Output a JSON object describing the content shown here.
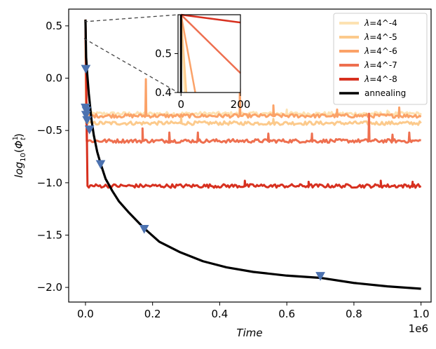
{
  "chart_data": {
    "type": "line",
    "xlabel": "Time",
    "ylabel": "log₁₀(Φ¹ₜ)",
    "ylabel_parts": {
      "base": "log",
      "sub": "10",
      "open": "(",
      "sym": "Φ",
      "sup": "1",
      "symsub": "t",
      "close": ")"
    },
    "xlim": [
      -50000,
      1030000
    ],
    "ylim": [
      -2.14,
      0.66
    ],
    "x_ticks": [
      0,
      200000,
      400000,
      600000,
      800000,
      1000000
    ],
    "x_tick_labels": [
      "0.0",
      "0.2",
      "0.4",
      "0.6",
      "0.8",
      "1.0"
    ],
    "x_offset_label": "1e6",
    "y_ticks": [
      0.5,
      0.0,
      -0.5,
      -1.0,
      -1.5,
      -2.0
    ],
    "y_tick_labels": [
      "0.5",
      "0.0",
      "−0.5",
      "−1.0",
      "−1.5",
      "−2.0"
    ],
    "legend_position": "top-right",
    "series": [
      {
        "name": "λ=4^-4",
        "lambda_label": "λ",
        "rest_label": "=4^-4",
        "color": "#fde2b2",
        "plateau": -0.34,
        "t_drop": 1200,
        "spikes": [
          [
            460000,
            0.06
          ],
          [
            600000,
            0.04
          ],
          [
            900000,
            0.03
          ]
        ]
      },
      {
        "name": "λ=4^-5",
        "lambda_label": "λ",
        "rest_label": "=4^-5",
        "color": "#fcca8c",
        "plateau": -0.43,
        "t_drop": 1800,
        "spikes": [
          [
            285000,
            0.06
          ],
          [
            560000,
            0.04
          ]
        ]
      },
      {
        "name": "λ=4^-6",
        "lambda_label": "λ",
        "rest_label": "=4^-6",
        "color": "#fba268",
        "plateau": -0.36,
        "t_drop": 2600,
        "spikes": [
          [
            180000,
            0.35
          ],
          [
            560000,
            0.1
          ],
          [
            750000,
            0.06
          ],
          [
            935000,
            0.08
          ],
          [
            460000,
            0.26
          ]
        ]
      },
      {
        "name": "λ=4^-7",
        "lambda_label": "λ",
        "rest_label": "=4^-7",
        "color": "#ee6f4f",
        "plateau": -0.6,
        "t_drop": 3800,
        "spikes": [
          [
            170000,
            0.12
          ],
          [
            250000,
            0.08
          ],
          [
            335000,
            0.08
          ],
          [
            545000,
            0.07
          ],
          [
            675000,
            0.07
          ],
          [
            845000,
            0.26
          ],
          [
            915000,
            0.06
          ],
          [
            965000,
            0.08
          ]
        ]
      },
      {
        "name": "λ=4^-8",
        "lambda_label": "λ",
        "rest_label": "=4^-8",
        "color": "#d7301f",
        "plateau": -1.03,
        "t_drop": 6000,
        "spikes": [
          [
            475000,
            0.05
          ],
          [
            665000,
            0.04
          ],
          [
            880000,
            0.05
          ],
          [
            975000,
            0.04
          ]
        ]
      },
      {
        "name": "annealing",
        "color": "#000000",
        "points": [
          [
            0,
            0.56
          ],
          [
            2000,
            0.2
          ],
          [
            5000,
            0.05
          ],
          [
            10000,
            -0.15
          ],
          [
            18000,
            -0.4
          ],
          [
            25000,
            -0.55
          ],
          [
            35000,
            -0.7
          ],
          [
            45000,
            -0.82
          ],
          [
            60000,
            -0.96
          ],
          [
            80000,
            -1.08
          ],
          [
            100000,
            -1.18
          ],
          [
            130000,
            -1.29
          ],
          [
            175000,
            -1.44
          ],
          [
            220000,
            -1.56
          ],
          [
            280000,
            -1.66
          ],
          [
            350000,
            -1.75
          ],
          [
            420000,
            -1.81
          ],
          [
            500000,
            -1.85
          ],
          [
            600000,
            -1.89
          ],
          [
            700000,
            -1.91
          ],
          [
            800000,
            -1.96
          ],
          [
            900000,
            -1.99
          ],
          [
            1000000,
            -2.01
          ]
        ]
      }
    ],
    "markers": {
      "shape": "triangle-down",
      "color": "#4c72b0",
      "points": [
        [
          1000,
          0.09
        ],
        [
          0,
          -0.28
        ],
        [
          3000,
          -0.31
        ],
        [
          1500,
          -0.35
        ],
        [
          4500,
          -0.4
        ],
        [
          12000,
          -0.49
        ],
        [
          45000,
          -0.82
        ],
        [
          175000,
          -1.44
        ],
        [
          700000,
          -1.89
        ]
      ]
    },
    "inset": {
      "xlim": [
        -10,
        200
      ],
      "ylim": [
        0.4,
        0.6
      ],
      "x_ticks": [
        0,
        200
      ],
      "x_tick_labels": [
        "0",
        "200"
      ],
      "y_ticks": [
        0.5,
        0.4
      ],
      "y_tick_labels": [
        "0.5",
        "0.4"
      ],
      "lines": [
        {
          "color": "#fde2b2",
          "points": [
            [
              0,
              0.6
            ],
            [
              12,
              0.4
            ]
          ]
        },
        {
          "color": "#fcca8c",
          "points": [
            [
              0,
              0.6
            ],
            [
              18,
              0.4
            ]
          ]
        },
        {
          "color": "#fba268",
          "points": [
            [
              0,
              0.6
            ],
            [
              48,
              0.4
            ]
          ]
        },
        {
          "color": "#ee6f4f",
          "points": [
            [
              0,
              0.6
            ],
            [
              200,
              0.45
            ]
          ]
        },
        {
          "color": "#d7301f",
          "points": [
            [
              0,
              0.6
            ],
            [
              200,
              0.58
            ]
          ]
        },
        {
          "color": "#000000",
          "points": [
            [
              0,
              0.6
            ],
            [
              0,
              0.4
            ]
          ]
        }
      ]
    }
  }
}
